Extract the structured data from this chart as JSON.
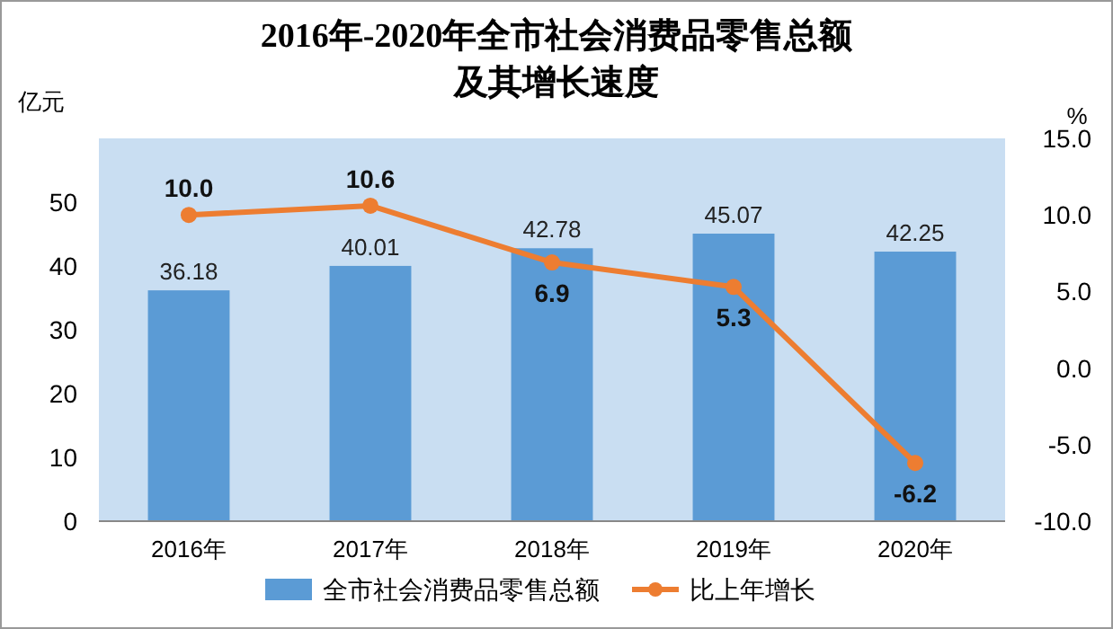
{
  "chart_data": {
    "type": "bar",
    "title": "2016年-2020年全市社会消费品零售总额及其增长速度",
    "ylabel": "亿元",
    "y2label": "%",
    "categories": [
      "2016年",
      "2017年",
      "2018年",
      "2019年",
      "2020年"
    ],
    "series": [
      {
        "name": "全市社会消费品零售总额",
        "color": "#5b9bd5",
        "values": [
          36.18,
          40.01,
          42.78,
          45.07,
          42.25
        ]
      },
      {
        "name": "比上年增长",
        "type": "line",
        "axis": "y2",
        "color": "#ed7d31",
        "values": [
          10.0,
          10.6,
          6.9,
          5.3,
          -6.2
        ],
        "value_labels": [
          "10.0",
          "10.6",
          "6.9",
          "5.3",
          "-6.2"
        ]
      }
    ],
    "ylim": [
      0,
      60
    ],
    "yticks": [
      0,
      10,
      20,
      30,
      40,
      50
    ],
    "y2lim": [
      -10,
      15
    ],
    "y2ticks": [
      {
        "value": -10,
        "label": "-10.0"
      },
      {
        "value": -5,
        "label": "-5.0"
      },
      {
        "value": 0,
        "label": "0.0"
      },
      {
        "value": 5,
        "label": "5.0"
      },
      {
        "value": 10,
        "label": "10.0"
      },
      {
        "value": 15,
        "label": "15.0"
      }
    ],
    "data_labels": true,
    "legend": "bottom",
    "grid": false,
    "marker": "circle",
    "line_style": "solid"
  }
}
